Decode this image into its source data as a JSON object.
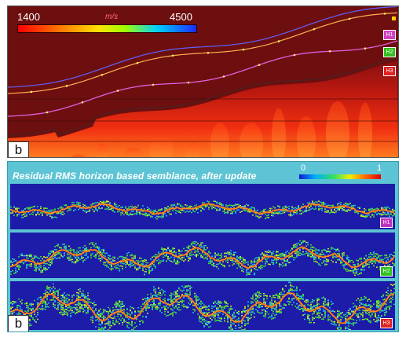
{
  "top_panel": {
    "colorbar": {
      "min": "1400",
      "max": "4500",
      "unit": "m/s"
    },
    "horizon_labels": [
      {
        "text": "H1",
        "color": "#d040c0"
      },
      {
        "text": "H2",
        "color": "#30c020"
      },
      {
        "text": "H3",
        "color": "#e02020"
      }
    ],
    "panel_letter": "b"
  },
  "bottom_panel": {
    "title": "Residual RMS horizon based semblance, after update",
    "colorbar": {
      "min": "0",
      "max": "1"
    },
    "strip_labels": [
      {
        "text": "H1",
        "color": "#c030c0"
      },
      {
        "text": "H2",
        "color": "#30c020"
      },
      {
        "text": "H3",
        "color": "#e02020"
      }
    ],
    "panel_letter": "b"
  }
}
